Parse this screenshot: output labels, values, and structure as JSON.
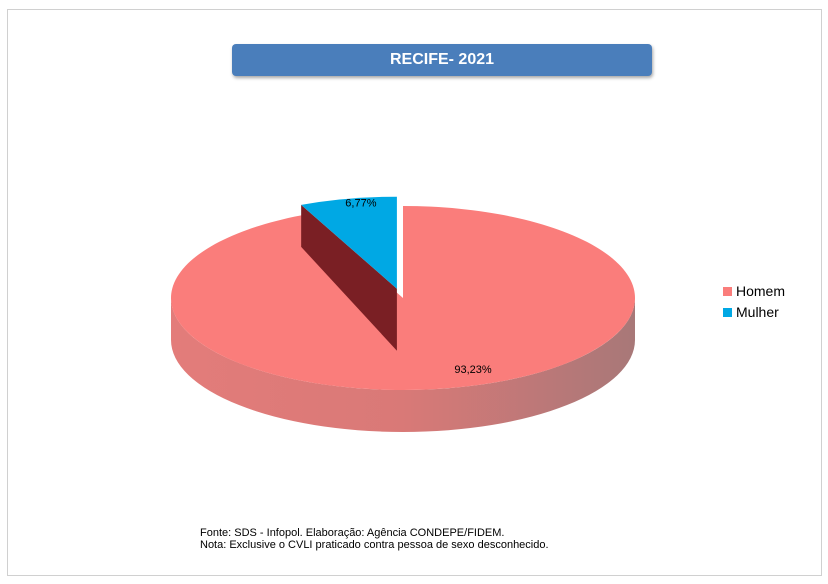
{
  "chart_data": {
    "type": "pie",
    "title": "RECIFE- 2021",
    "style": "3d",
    "legend_position": "right",
    "slices": [
      {
        "label": "Homem",
        "value": 93.23,
        "display": "93,23%",
        "color": "#fa7d7b"
      },
      {
        "label": "Mulher",
        "value": 6.77,
        "display": "6,77%",
        "color": "#00a8e4"
      }
    ]
  },
  "footer": {
    "source": "Fonte: SDS - Infopol. Elaboração: Agência CONDEPE/FIDEM.",
    "note": "Nota: Exclusive o CVLI praticado contra pessoa de sexo desconhecido."
  }
}
